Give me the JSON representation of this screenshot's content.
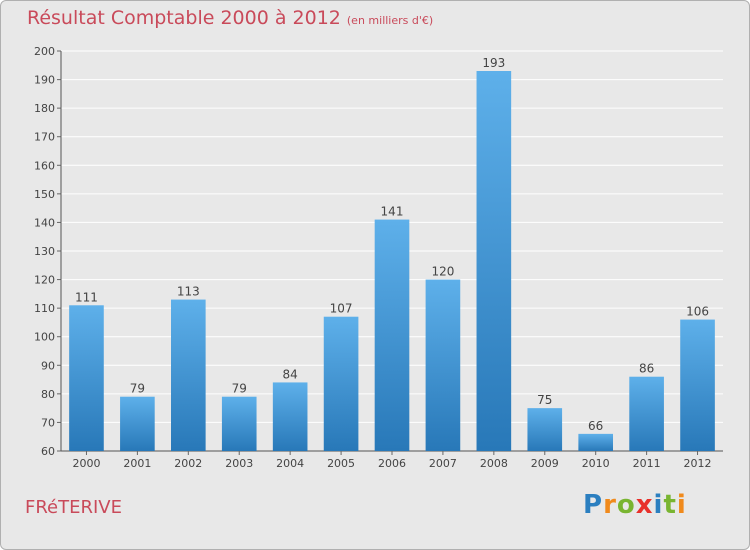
{
  "title": "Résultat Comptable 2000 à 2012",
  "subtitle": "(en milliers d'€)",
  "commune": "FRéTERIVE",
  "logo": {
    "text": "Proxiti",
    "letters": [
      {
        "ch": "P",
        "color": "#2b7fc0"
      },
      {
        "ch": "r",
        "color": "#f08a1c"
      },
      {
        "ch": "o",
        "color": "#79b531"
      },
      {
        "ch": "x",
        "color": "#e8302a"
      },
      {
        "ch": "i",
        "color": "#2b7fc0"
      },
      {
        "ch": "t",
        "color": "#79b531"
      },
      {
        "ch": "i",
        "color": "#f08a1c"
      }
    ]
  },
  "colors": {
    "bar_top": "#5eb0ea",
    "bar_bottom": "#2878b8",
    "title": "#c94a5a",
    "background": "#e8e8e8",
    "grid": "#ffffff"
  },
  "chart_data": {
    "type": "bar",
    "title": "Résultat Comptable 2000 à 2012",
    "subtitle": "(en milliers d'€)",
    "xlabel": "",
    "ylabel": "",
    "categories": [
      "2000",
      "2001",
      "2002",
      "2003",
      "2004",
      "2005",
      "2006",
      "2007",
      "2008",
      "2009",
      "2010",
      "2011",
      "2012"
    ],
    "values": [
      111,
      79,
      113,
      79,
      84,
      107,
      141,
      120,
      193,
      75,
      66,
      86,
      106
    ],
    "ylim": [
      60,
      200
    ],
    "yticks": [
      60,
      70,
      80,
      90,
      100,
      110,
      120,
      130,
      140,
      150,
      160,
      170,
      180,
      190,
      200
    ],
    "grid": true,
    "data_labels": true
  }
}
